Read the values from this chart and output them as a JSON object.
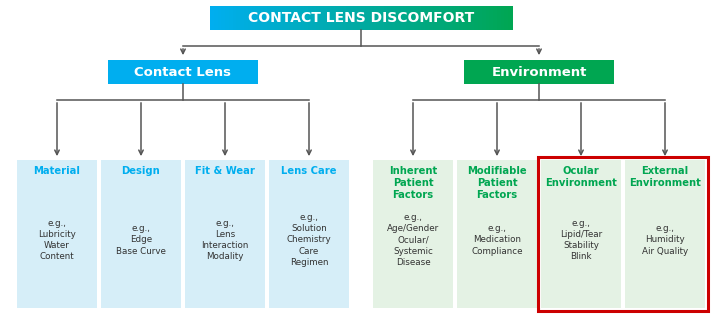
{
  "title": "CONTACT LENS DISCOMFORT",
  "title_bg_left": "#00aeef",
  "title_bg_right": "#00a651",
  "contact_lens_label": "Contact Lens",
  "contact_lens_bg": "#00aeef",
  "environment_label": "Environment",
  "environment_bg": "#00a651",
  "blue_leaf_bg": "#d6eef8",
  "green_leaf_bg": "#e4f2e4",
  "blue_text": "#00aeef",
  "green_text": "#00a651",
  "dark_text": "#333333",
  "line_color": "#555555",
  "red_box_color": "#cc0000",
  "leaf_nodes_blue": [
    {
      "title": "Material",
      "body": "e.g.,\nLubricity\nWater\nContent"
    },
    {
      "title": "Design",
      "body": "e.g.,\nEdge\nBase Curve"
    },
    {
      "title": "Fit & Wear",
      "body": "e.g.,\nLens\nInteraction\nModality"
    },
    {
      "title": "Lens Care",
      "body": "e.g.,\nSolution\nChemistry\nCare\nRegimen"
    }
  ],
  "leaf_nodes_green": [
    {
      "title": "Inherent\nPatient\nFactors",
      "body": "e.g.,\nAge/Gender\nOcular/\nSystemic\nDisease"
    },
    {
      "title": "Modifiable\nPatient\nFactors",
      "body": "e.g.,\nMedication\nCompliance"
    },
    {
      "title": "Ocular\nEnvironment",
      "body": "e.g.,\nLipid/Tear\nStability\nBlink"
    },
    {
      "title": "External\nEnvironment",
      "body": "e.g.,\nHumidity\nAir Quality"
    }
  ],
  "fig_w": 7.22,
  "fig_h": 3.16,
  "dpi": 100
}
